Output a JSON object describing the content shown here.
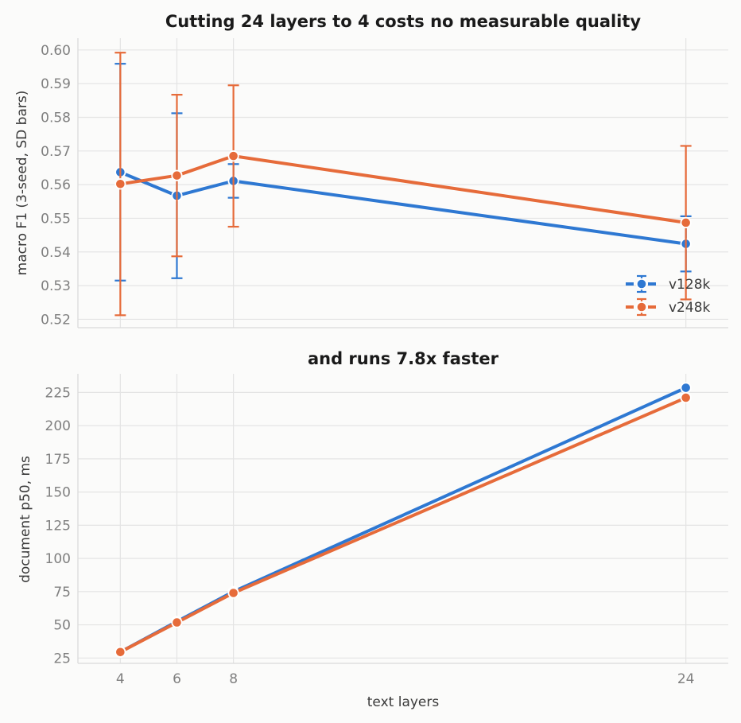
{
  "chart_data": [
    {
      "type": "line",
      "title": "Cutting 24 layers to 4 costs no measurable quality",
      "xlabel": "",
      "ylabel": "macro F1 (3-seed, SD bars)",
      "x": [
        4,
        6,
        8,
        24
      ],
      "xlim": [
        2.5,
        25.5
      ],
      "ylim": [
        0.5175,
        0.6035
      ],
      "yticks": [
        0.52,
        0.53,
        0.54,
        0.55,
        0.56,
        0.57,
        0.58,
        0.59,
        0.6
      ],
      "ytick_labels": [
        "0.52",
        "0.53",
        "0.54",
        "0.55",
        "0.56",
        "0.57",
        "0.58",
        "0.59",
        "0.60"
      ],
      "grid": true,
      "legend_position": "lower right",
      "series": [
        {
          "name": "v128k",
          "color": "#2e78d2",
          "values": [
            0.5637,
            0.5567,
            0.5611,
            0.5424
          ],
          "sd": [
            0.0322,
            0.0245,
            0.005,
            0.0082
          ]
        },
        {
          "name": "v248k",
          "color": "#e66b3a",
          "values": [
            0.5602,
            0.5627,
            0.5685,
            0.5487
          ],
          "sd": [
            0.039,
            0.024,
            0.021,
            0.0228
          ]
        }
      ]
    },
    {
      "type": "line",
      "title": "and runs 7.8x faster",
      "xlabel": "text layers",
      "ylabel": "document p50, ms",
      "x": [
        4,
        6,
        8,
        24
      ],
      "xticks": [
        4,
        6,
        8,
        24
      ],
      "xtick_labels": [
        "4",
        "6",
        "8",
        "24"
      ],
      "xlim": [
        2.5,
        25.5
      ],
      "ylim": [
        21,
        239
      ],
      "yticks": [
        25,
        50,
        75,
        100,
        125,
        150,
        175,
        200,
        225
      ],
      "ytick_labels": [
        "25",
        "50",
        "75",
        "100",
        "125",
        "150",
        "175",
        "200",
        "225"
      ],
      "grid": true,
      "series": [
        {
          "name": "v128k",
          "color": "#2e78d2",
          "values": [
            29.5,
            52.5,
            75.0,
            228.5
          ]
        },
        {
          "name": "v248k",
          "color": "#e66b3a",
          "values": [
            29.5,
            51.8,
            74.0,
            221.0
          ]
        }
      ]
    }
  ]
}
